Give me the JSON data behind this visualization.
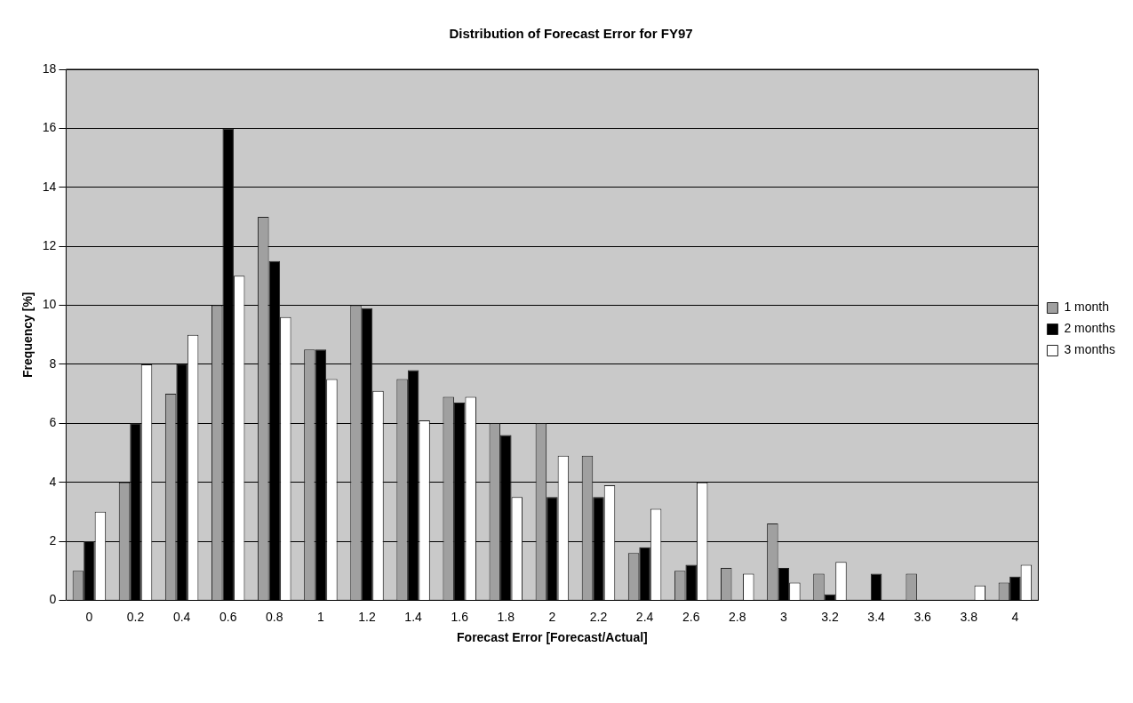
{
  "chart_data": {
    "type": "bar",
    "title": "Distribution of Forecast Error for FY97",
    "xlabel": "Forecast Error [Forecast/Actual]",
    "ylabel": "Frequency [%]",
    "categories": [
      "0",
      "0.2",
      "0.4",
      "0.6",
      "0.8",
      "1",
      "1.2",
      "1.4",
      "1.6",
      "1.8",
      "2",
      "2.2",
      "2.4",
      "2.6",
      "2.8",
      "3",
      "3.2",
      "3.4",
      "3.6",
      "3.8",
      "4"
    ],
    "series": [
      {
        "name": "1 month",
        "color": "#a0a0a0",
        "values": [
          1,
          4,
          7,
          10,
          13,
          8.5,
          10,
          7.5,
          6.9,
          6,
          6,
          4.9,
          1.6,
          1,
          1.1,
          2.6,
          0.9,
          0,
          0.9,
          0,
          0.6
        ]
      },
      {
        "name": "2 months",
        "color": "#000000",
        "values": [
          2,
          6,
          8,
          16,
          11.5,
          8.5,
          9.9,
          7.8,
          6.7,
          5.6,
          3.5,
          3.5,
          1.8,
          1.2,
          0,
          1.1,
          0.2,
          0.9,
          0,
          0,
          0.8
        ]
      },
      {
        "name": "3 months",
        "color": "#ffffff",
        "values": [
          3,
          8,
          9,
          11,
          9.6,
          7.5,
          7.1,
          6.1,
          6.9,
          3.5,
          4.9,
          3.9,
          3.1,
          4,
          0.9,
          0.6,
          1.3,
          0,
          0,
          0.5,
          1.2
        ]
      }
    ],
    "ylim": [
      0,
      18
    ],
    "yticks": [
      0,
      2,
      4,
      6,
      8,
      10,
      12,
      14,
      16,
      18
    ],
    "grid": "y",
    "legend": "right"
  }
}
